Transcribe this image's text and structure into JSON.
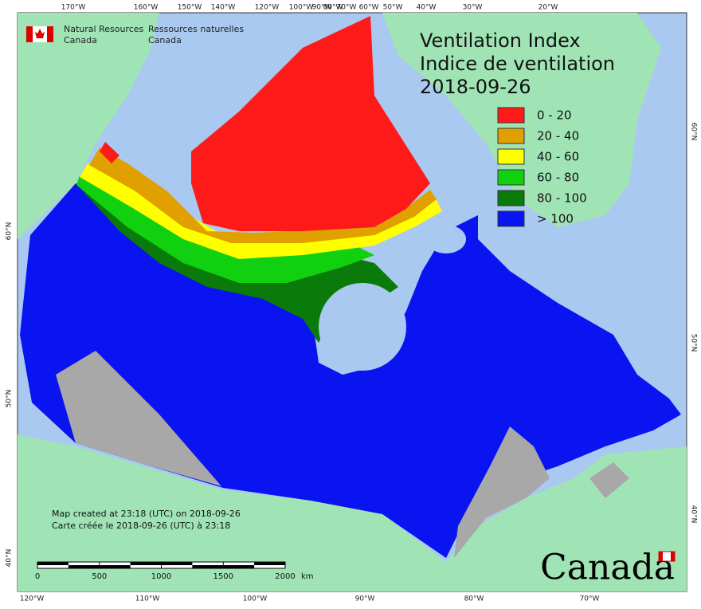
{
  "header": {
    "org_en": [
      "Natural Resources",
      "Canada"
    ],
    "org_fr": [
      "Ressources naturelles",
      "Canada"
    ]
  },
  "title": {
    "en": "Ventilation Index",
    "fr": "Indice de ventilation",
    "date": "2018-09-26"
  },
  "legend": [
    {
      "label": "0 - 20",
      "color": "#ff1a1a"
    },
    {
      "label": "20 - 40",
      "color": "#e0a000"
    },
    {
      "label": "40 - 60",
      "color": "#ffff00"
    },
    {
      "label": "60 - 80",
      "color": "#10d010"
    },
    {
      "label": "80 - 100",
      "color": "#0a7a0a"
    },
    {
      "label": "> 100",
      "color": "#0a14f0"
    }
  ],
  "graticule": {
    "top": [
      "170°W",
      "160°W",
      "150°W",
      "140°W",
      "120°W",
      "100°W",
      "90°W",
      "80°W",
      "70°W",
      "60°W",
      "50°W",
      "40°W",
      "30°W",
      "20°W"
    ],
    "bottom": [
      "120°W",
      "110°W",
      "100°W",
      "90°W",
      "80°W",
      "70°W"
    ],
    "left": [
      "60°N",
      "50°N",
      "40°N"
    ],
    "right": [
      "60°N",
      "50°N",
      "40°N"
    ]
  },
  "notes": [
    "Map created at 23:18 (UTC) on 2018-09-26",
    "Carte créée le 2018-09-26 (UTC) à 23:18"
  ],
  "scale_bar": {
    "ticks": [
      0,
      500,
      1000,
      1500,
      2000
    ],
    "unit": "km"
  },
  "wordmark": "Canada"
}
